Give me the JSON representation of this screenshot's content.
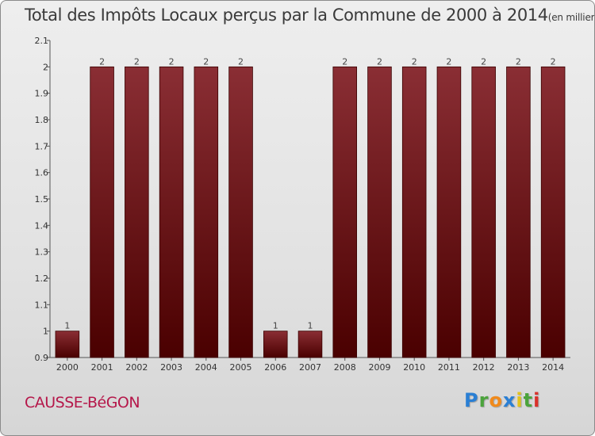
{
  "chart_data": {
    "type": "bar",
    "title": "Total des Impôts Locaux perçus par la Commune de 2000 à 2014",
    "title_unit": "(en milliers d'€)",
    "categories": [
      "2000",
      "2001",
      "2002",
      "2003",
      "2004",
      "2005",
      "2006",
      "2007",
      "2008",
      "2009",
      "2010",
      "2011",
      "2012",
      "2013",
      "2014"
    ],
    "values": [
      1,
      2,
      2,
      2,
      2,
      2,
      1,
      1,
      2,
      2,
      2,
      2,
      2,
      2,
      2
    ],
    "data_labels": [
      "1",
      "2",
      "2",
      "2",
      "2",
      "2",
      "1",
      "1",
      "2",
      "2",
      "2",
      "2",
      "2",
      "2",
      "2"
    ],
    "ylim": [
      0.9,
      2.1
    ],
    "yticks": [
      0.9,
      1,
      1.1,
      1.2,
      1.3,
      1.4,
      1.5,
      1.6,
      1.7,
      1.8,
      1.9,
      2,
      2.1
    ],
    "ytick_labels": [
      "0.9",
      "1",
      "1.1",
      "1.2",
      "1.3",
      "1.4",
      "1.5",
      "1.6",
      "1.7",
      "1.8",
      "1.9",
      "2",
      "2.1"
    ],
    "xlabel": "",
    "ylabel": "",
    "grid": false,
    "legend": "none",
    "bar_color": "#6e1212"
  },
  "footer": {
    "commune": "CAUSSE-BéGON",
    "logo": [
      "P",
      "r",
      "o",
      "x",
      "i",
      "t",
      "i"
    ]
  }
}
